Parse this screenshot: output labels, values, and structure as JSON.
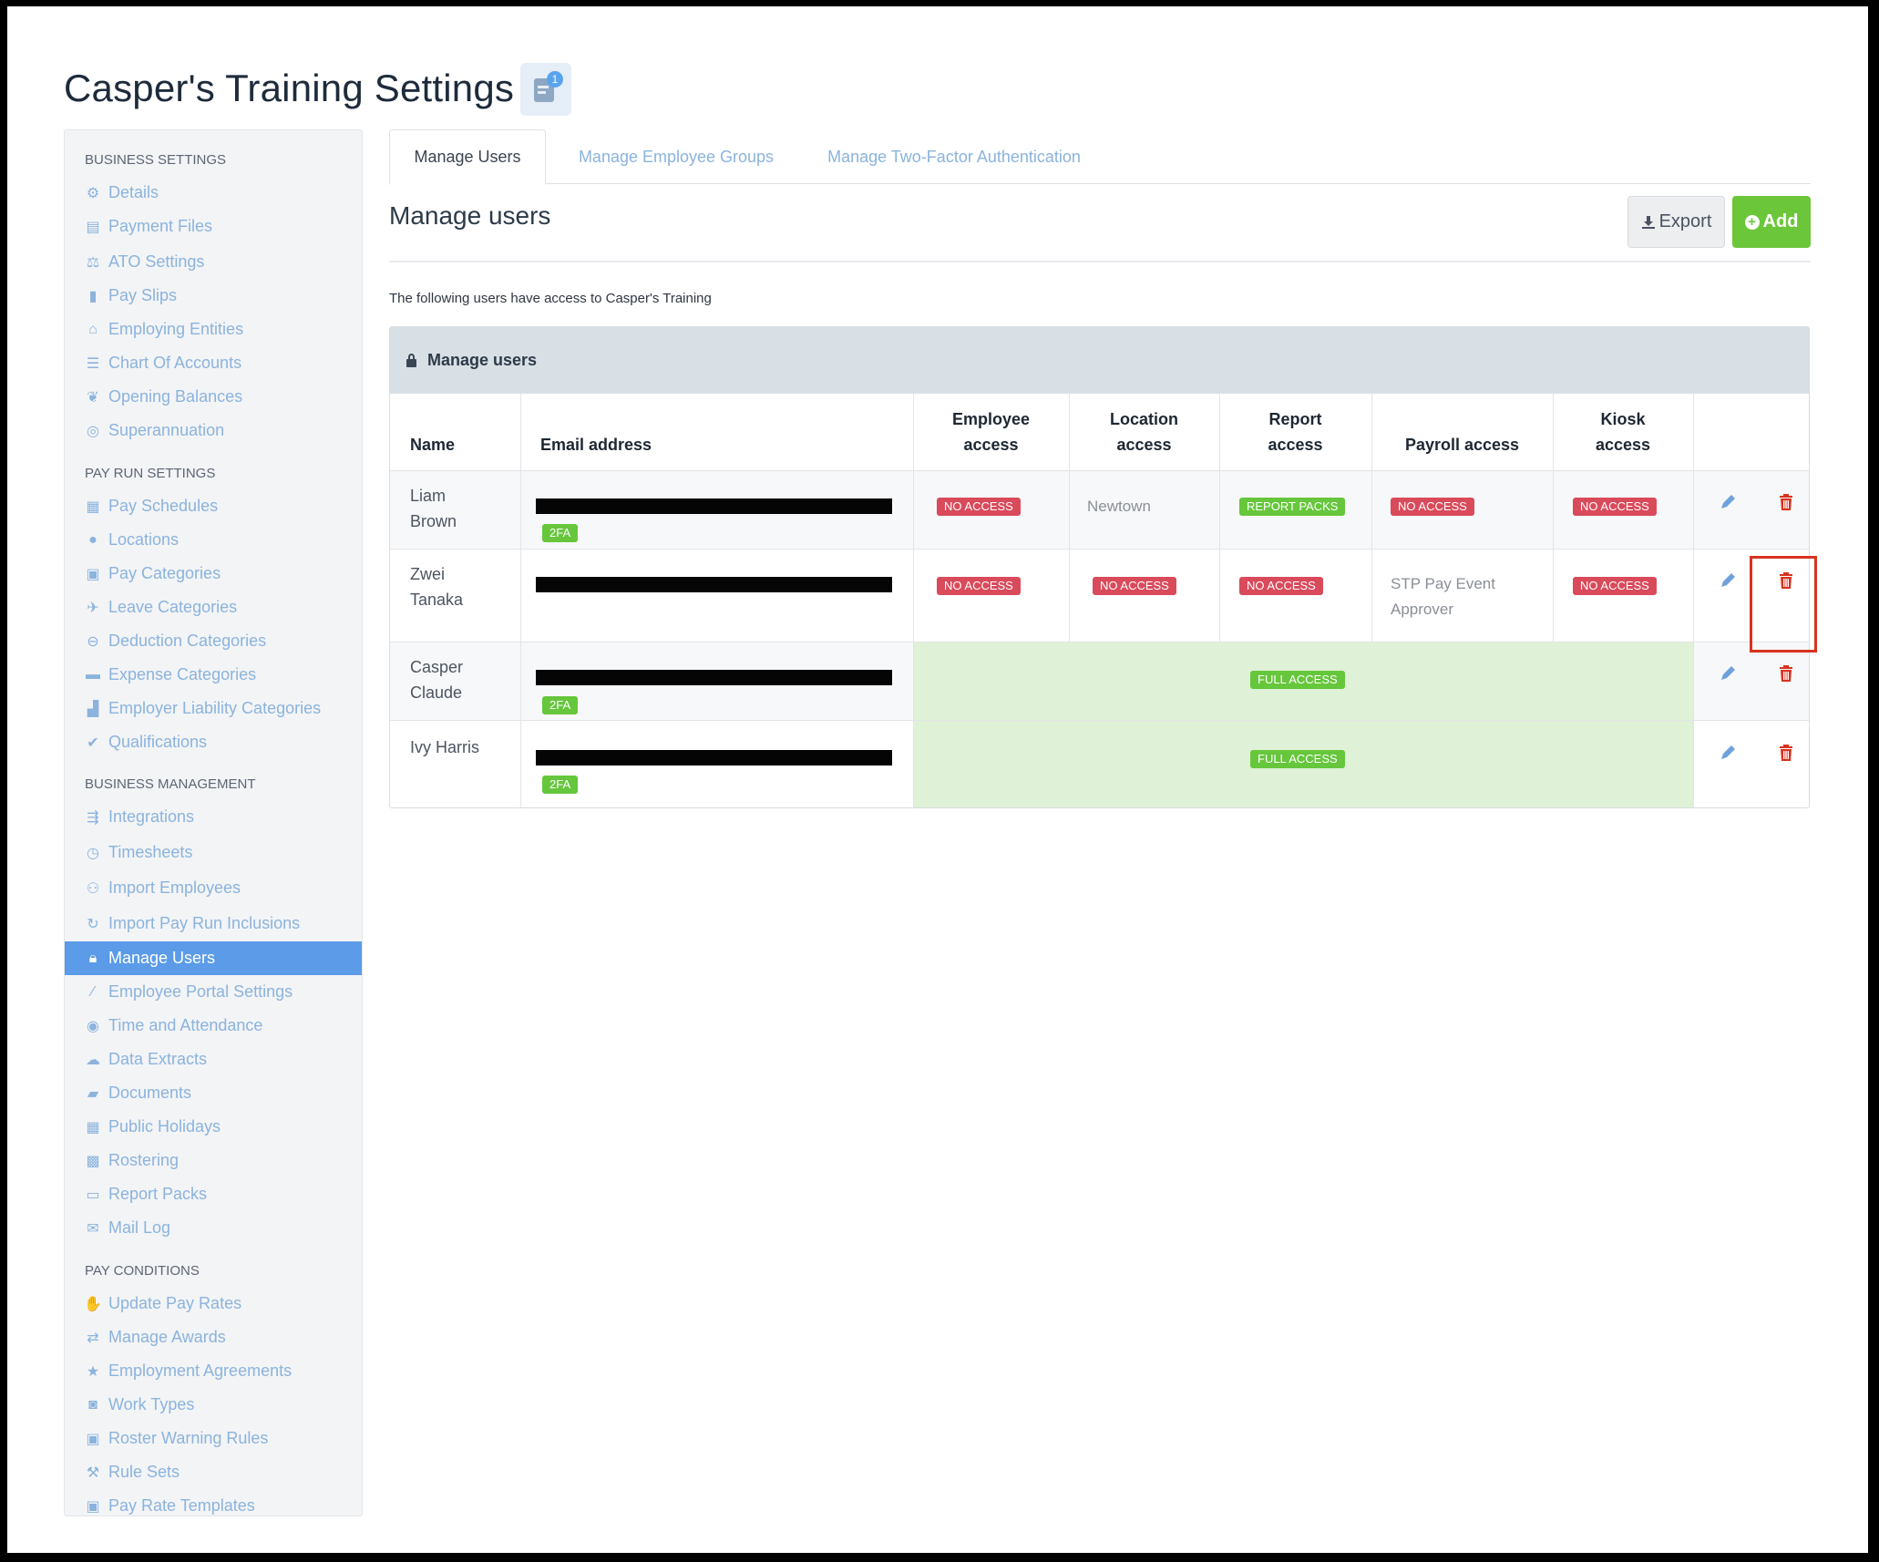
{
  "page": {
    "title": "Casper's Training Settings",
    "notification_count": "1"
  },
  "sidebar": {
    "sections": [
      {
        "heading": "BUSINESS SETTINGS",
        "items": [
          {
            "label": "Details",
            "icon": "gear-icon"
          },
          {
            "label": "Payment Files",
            "icon": "floppy-icon"
          },
          {
            "label": "ATO Settings",
            "icon": "scales-icon"
          },
          {
            "label": "Pay Slips",
            "icon": "file-icon"
          },
          {
            "label": "Employing Entities",
            "icon": "bank-icon"
          },
          {
            "label": "Chart Of Accounts",
            "icon": "list-icon"
          },
          {
            "label": "Opening Balances",
            "icon": "leaf-icon"
          },
          {
            "label": "Superannuation",
            "icon": "lifebuoy-icon"
          }
        ]
      },
      {
        "heading": "PAY RUN SETTINGS",
        "items": [
          {
            "label": "Pay Schedules",
            "icon": "calendar-icon"
          },
          {
            "label": "Locations",
            "icon": "globe-icon"
          },
          {
            "label": "Pay Categories",
            "icon": "money-icon"
          },
          {
            "label": "Leave Categories",
            "icon": "plane-icon"
          },
          {
            "label": "Deduction Categories",
            "icon": "minus-circle-icon"
          },
          {
            "label": "Expense Categories",
            "icon": "archive-icon"
          },
          {
            "label": "Employer Liability Categories",
            "icon": "bar-chart-icon"
          },
          {
            "label": "Qualifications",
            "icon": "check-icon"
          }
        ]
      },
      {
        "heading": "BUSINESS MANAGEMENT",
        "items": [
          {
            "label": "Integrations",
            "icon": "plug-icon"
          },
          {
            "label": "Timesheets",
            "icon": "clock-icon"
          },
          {
            "label": "Import Employees",
            "icon": "people-icon"
          },
          {
            "label": "Import Pay Run Inclusions",
            "icon": "refresh-icon"
          },
          {
            "label": "Manage Users",
            "icon": "lock-icon",
            "active": true
          },
          {
            "label": "Employee Portal Settings",
            "icon": "magic-wand-icon"
          },
          {
            "label": "Time and Attendance",
            "icon": "user-clock-icon"
          },
          {
            "label": "Data Extracts",
            "icon": "cloud-download-icon"
          },
          {
            "label": "Documents",
            "icon": "folder-icon"
          },
          {
            "label": "Public Holidays",
            "icon": "calendar-icon"
          },
          {
            "label": "Rostering",
            "icon": "calendar-grid-icon"
          },
          {
            "label": "Report Packs",
            "icon": "folder-outline-icon"
          },
          {
            "label": "Mail Log",
            "icon": "envelope-icon"
          }
        ]
      },
      {
        "heading": "PAY CONDITIONS",
        "items": [
          {
            "label": "Update Pay Rates",
            "icon": "hand-money-icon"
          },
          {
            "label": "Manage Awards",
            "icon": "exchange-icon"
          },
          {
            "label": "Employment Agreements",
            "icon": "star-icon"
          },
          {
            "label": "Work Types",
            "icon": "camera-icon"
          },
          {
            "label": "Roster Warning Rules",
            "icon": "calendar-alert-icon"
          },
          {
            "label": "Rule Sets",
            "icon": "gavel-icon"
          },
          {
            "label": "Pay Rate Templates",
            "icon": "money-icon"
          }
        ]
      }
    ]
  },
  "tabs": [
    {
      "label": "Manage Users",
      "active": true
    },
    {
      "label": "Manage Employee Groups",
      "active": false
    },
    {
      "label": "Manage Two-Factor Authentication",
      "active": false
    }
  ],
  "main": {
    "section_title": "Manage users",
    "export_label": "Export",
    "add_label": "Add",
    "intro_text": "The following users have access to Casper's Training",
    "panel_title": "Manage users"
  },
  "table": {
    "columns": {
      "name": "Name",
      "email": "Email address",
      "employee": [
        "Employee",
        "access"
      ],
      "location": [
        "Location",
        "access"
      ],
      "report": [
        "Report",
        "access"
      ],
      "payroll": "Payroll access",
      "kiosk": [
        "Kiosk",
        "access"
      ]
    },
    "rows": [
      {
        "name": [
          "Liam",
          "Brown"
        ],
        "twofa": "2FA",
        "employee": "NO ACCESS",
        "location": "Newtown",
        "report": "REPORT PACKS",
        "payroll": "NO ACCESS",
        "kiosk": "NO ACCESS"
      },
      {
        "name": [
          "Zwei",
          "Tanaka"
        ],
        "twofa": "",
        "employee": "NO ACCESS",
        "location": "NO ACCESS",
        "report": "NO ACCESS",
        "payroll": [
          "STP Pay Event",
          "Approver"
        ],
        "kiosk": "NO ACCESS"
      },
      {
        "name": [
          "Casper",
          "Claude"
        ],
        "twofa": "2FA",
        "full_access": "FULL ACCESS"
      },
      {
        "name": [
          "Ivy Harris"
        ],
        "twofa": "2FA",
        "full_access": "FULL ACCESS"
      }
    ]
  },
  "colors": {
    "accent_blue": "#5b9be8",
    "link_blue": "#8bb3dd",
    "tag_red": "#d94a5b",
    "tag_green": "#66c63c",
    "delete_red": "#d9321f",
    "full_access_bg": "#dff1d6"
  }
}
